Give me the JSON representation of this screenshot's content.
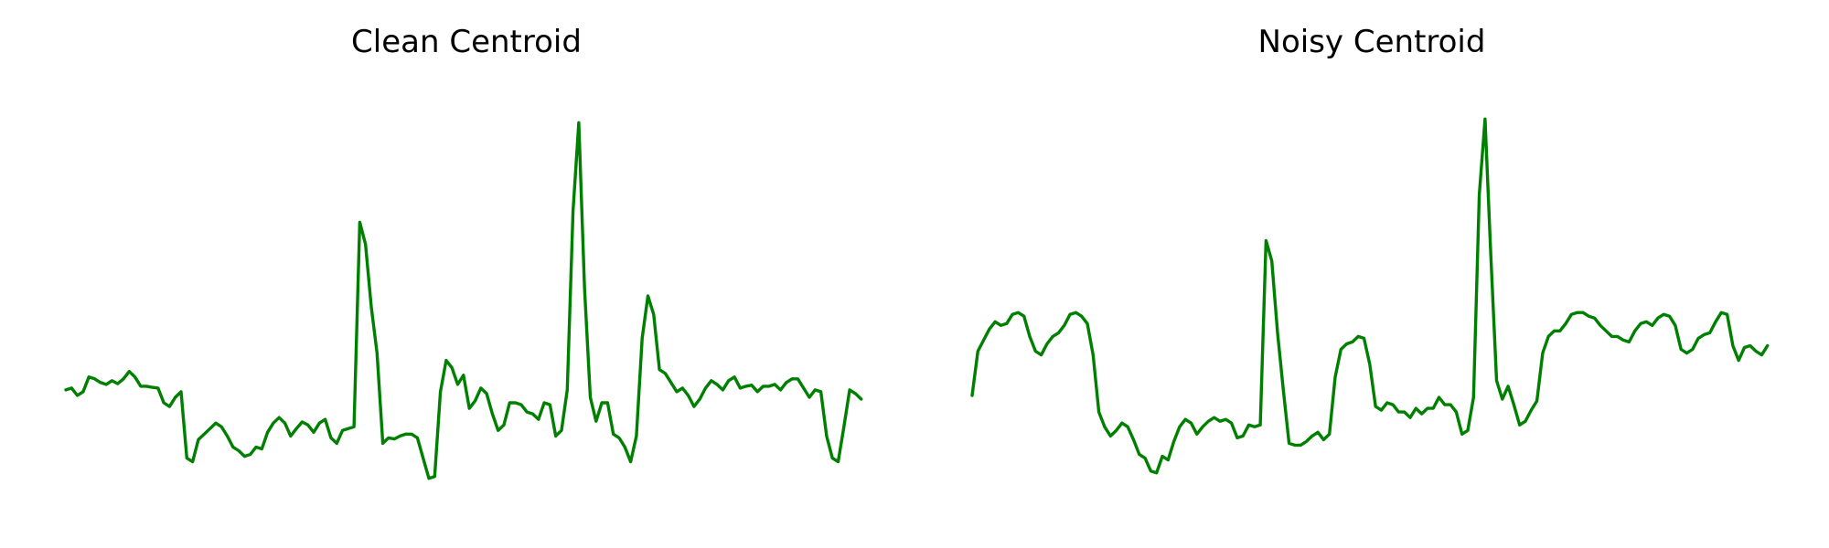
{
  "chart_data": [
    {
      "type": "line",
      "title": "Clean Centroid",
      "xlabel": "",
      "ylabel": "",
      "grid": false,
      "axes_visible": false,
      "xlim": [
        0,
        139
      ],
      "ylim": [
        -4.6,
        6.6
      ],
      "color": "#008000",
      "series": [
        {
          "values": [
            -1.55,
            -1.5,
            -1.7,
            -1.6,
            -1.2,
            -1.25,
            -1.35,
            -1.4,
            -1.3,
            -1.38,
            -1.25,
            -1.05,
            -1.2,
            -1.45,
            -1.45,
            -1.48,
            -1.5,
            -1.9,
            -2.0,
            -1.75,
            -1.6,
            -3.4,
            -3.5,
            -2.9,
            -2.75,
            -2.6,
            -2.45,
            -2.55,
            -2.8,
            -3.1,
            -3.2,
            -3.35,
            -3.3,
            -3.1,
            -3.15,
            -2.7,
            -2.45,
            -2.3,
            -2.45,
            -2.8,
            -2.6,
            -2.42,
            -2.5,
            -2.7,
            -2.45,
            -2.35,
            -2.85,
            -3.0,
            -2.65,
            -2.6,
            -2.55,
            3.0,
            2.4,
            0.7,
            -0.55,
            -3.0,
            -2.85,
            -2.88,
            -2.8,
            -2.75,
            -2.75,
            -2.85,
            -3.4,
            -3.95,
            -3.9,
            -1.6,
            -0.75,
            -0.95,
            -1.4,
            -1.15,
            -2.05,
            -1.85,
            -1.5,
            -1.65,
            -2.2,
            -2.65,
            -2.5,
            -1.9,
            -1.9,
            -1.95,
            -2.15,
            -2.2,
            -2.35,
            -1.9,
            -1.95,
            -2.8,
            -2.65,
            -1.55,
            3.3,
            5.7,
            1.2,
            -1.75,
            -2.4,
            -1.9,
            -1.9,
            -2.75,
            -2.85,
            -3.1,
            -3.5,
            -2.8,
            -0.15,
            1.0,
            0.5,
            -1.0,
            -1.1,
            -1.35,
            -1.6,
            -1.5,
            -1.7,
            -2.0,
            -1.8,
            -1.5,
            -1.3,
            -1.4,
            -1.55,
            -1.3,
            -1.2,
            -1.5,
            -1.45,
            -1.42,
            -1.6,
            -1.45,
            -1.45,
            -1.4,
            -1.55,
            -1.35,
            -1.25,
            -1.25,
            -1.5,
            -1.75,
            -1.55,
            -1.6,
            -2.8,
            -3.4,
            -3.5,
            -2.55,
            -1.55,
            -1.65,
            -1.8
          ]
        }
      ]
    },
    {
      "type": "line",
      "title": "Noisy Centroid",
      "xlabel": "",
      "ylabel": "",
      "grid": false,
      "axes_visible": false,
      "xlim": [
        0,
        139
      ],
      "ylim": [
        -4.6,
        6.6
      ],
      "color": "#008000",
      "series": [
        {
          "values": [
            -1.7,
            -0.5,
            -0.2,
            0.1,
            0.3,
            0.2,
            0.25,
            0.5,
            0.55,
            0.45,
            -0.1,
            -0.5,
            -0.6,
            -0.3,
            -0.1,
            0.0,
            0.2,
            0.5,
            0.55,
            0.45,
            0.25,
            -0.6,
            -2.15,
            -2.55,
            -2.8,
            -2.65,
            -2.45,
            -2.55,
            -2.9,
            -3.3,
            -3.4,
            -3.75,
            -3.8,
            -3.35,
            -3.45,
            -2.95,
            -2.55,
            -2.35,
            -2.45,
            -2.75,
            -2.55,
            -2.4,
            -2.3,
            -2.4,
            -2.35,
            -2.45,
            -2.85,
            -2.8,
            -2.5,
            -2.55,
            -2.5,
            2.5,
            1.95,
            0.0,
            -1.55,
            -3.0,
            -3.05,
            -3.05,
            -2.95,
            -2.8,
            -2.7,
            -2.9,
            -2.75,
            -1.2,
            -0.45,
            -0.3,
            -0.25,
            -0.1,
            -0.15,
            -0.85,
            -2.0,
            -2.1,
            -1.9,
            -1.95,
            -2.15,
            -2.15,
            -2.3,
            -2.05,
            -2.2,
            -2.05,
            -2.05,
            -1.75,
            -1.95,
            -1.95,
            -2.15,
            -2.75,
            -2.65,
            -1.75,
            3.75,
            5.8,
            2.1,
            -1.3,
            -1.8,
            -1.45,
            -1.95,
            -2.5,
            -2.4,
            -2.1,
            -1.85,
            -0.55,
            -0.1,
            0.05,
            0.05,
            0.25,
            0.5,
            0.55,
            0.55,
            0.45,
            0.4,
            0.2,
            0.05,
            -0.1,
            -0.1,
            -0.2,
            -0.25,
            0.05,
            0.25,
            0.3,
            0.2,
            0.4,
            0.5,
            0.45,
            0.2,
            -0.45,
            -0.55,
            -0.45,
            -0.15,
            -0.05,
            0.0,
            0.3,
            0.55,
            0.5,
            -0.35,
            -0.75,
            -0.4,
            -0.35,
            -0.5,
            -0.6,
            -0.35
          ]
        }
      ]
    }
  ]
}
